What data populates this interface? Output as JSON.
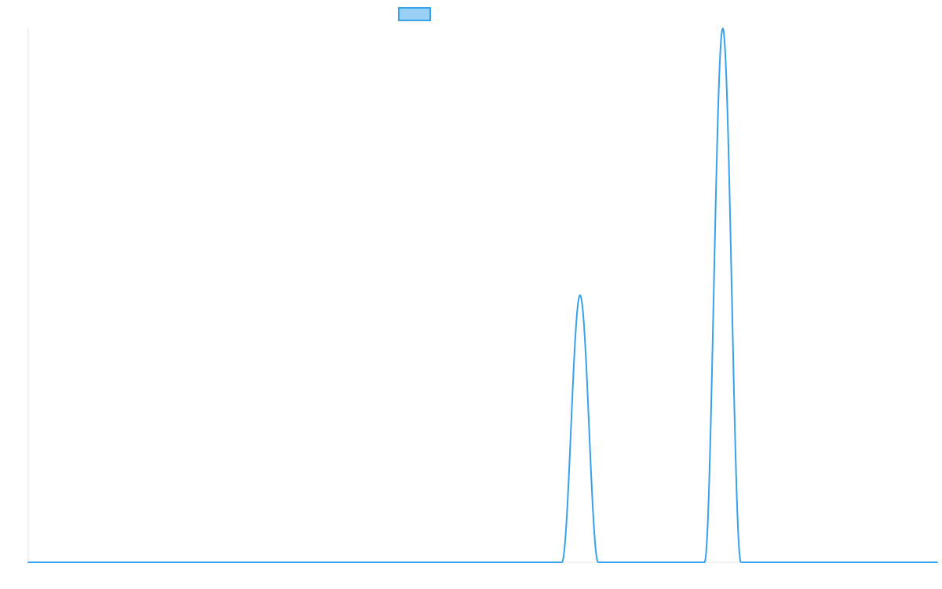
{
  "chart_data": {
    "type": "line",
    "title": "",
    "xlabel": "",
    "ylabel": "",
    "xlim": [
      0,
      1
    ],
    "ylim": [
      0,
      1
    ],
    "grid": false,
    "legend": {
      "placement": "top-center",
      "entries": [
        ""
      ]
    },
    "series": [
      {
        "name": "",
        "color": "#36a2eb",
        "fill_color": "#9ad0f5",
        "peaks": [
          {
            "center": 0.607,
            "height": 0.5,
            "half_width": 0.02
          },
          {
            "center": 0.764,
            "height": 1.0,
            "half_width": 0.02
          }
        ]
      }
    ]
  }
}
